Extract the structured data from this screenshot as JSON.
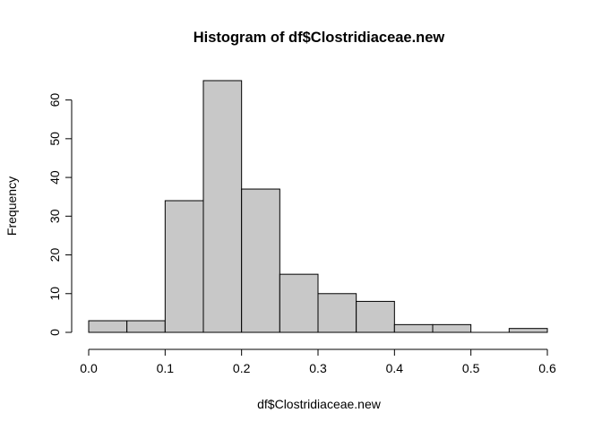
{
  "chart_data": {
    "type": "bar",
    "title": "Histogram of df$Clostridiaceae.new",
    "xlabel": "df$Clostridiaceae.new",
    "ylabel": "Frequency",
    "bins": [
      {
        "start": 0.0,
        "end": 0.05,
        "count": 3
      },
      {
        "start": 0.05,
        "end": 0.1,
        "count": 3
      },
      {
        "start": 0.1,
        "end": 0.15,
        "count": 34
      },
      {
        "start": 0.15,
        "end": 0.2,
        "count": 65
      },
      {
        "start": 0.2,
        "end": 0.25,
        "count": 37
      },
      {
        "start": 0.25,
        "end": 0.3,
        "count": 15
      },
      {
        "start": 0.3,
        "end": 0.35,
        "count": 10
      },
      {
        "start": 0.35,
        "end": 0.4,
        "count": 8
      },
      {
        "start": 0.4,
        "end": 0.45,
        "count": 2
      },
      {
        "start": 0.45,
        "end": 0.5,
        "count": 2
      },
      {
        "start": 0.5,
        "end": 0.55,
        "count": 0
      },
      {
        "start": 0.55,
        "end": 0.6,
        "count": 1
      }
    ],
    "xticks": [
      "0.0",
      "0.1",
      "0.2",
      "0.3",
      "0.4",
      "0.5",
      "0.6"
    ],
    "yticks": [
      "0",
      "10",
      "20",
      "30",
      "40",
      "50",
      "60"
    ],
    "xlim": [
      0,
      0.6
    ],
    "ylim": [
      0,
      65
    ],
    "grid": false,
    "colors": {
      "bar_fill": "#c8c8c8",
      "bar_stroke": "#000000"
    }
  }
}
